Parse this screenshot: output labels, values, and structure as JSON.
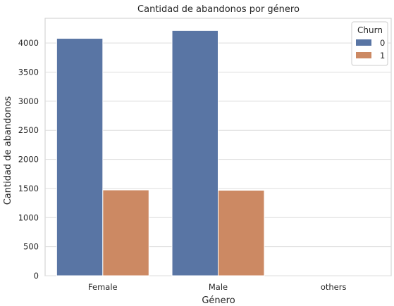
{
  "chart_data": {
    "type": "bar",
    "title": "Cantidad de abandonos por género",
    "xlabel": "Género",
    "ylabel": "Cantidad de abandonos",
    "categories": [
      "Female",
      "Male",
      "others"
    ],
    "series": [
      {
        "name": "0",
        "values": [
          4080,
          4215,
          0
        ],
        "color": "#5975a4"
      },
      {
        "name": "1",
        "values": [
          1475,
          1470,
          0
        ],
        "color": "#cc8963"
      }
    ],
    "ylim": [
      0,
      4425
    ],
    "yticks": [
      0,
      500,
      1000,
      1500,
      2000,
      2500,
      3000,
      3500,
      4000
    ],
    "grid": true,
    "legend": {
      "title": "Churn",
      "placement": "top-right"
    }
  }
}
